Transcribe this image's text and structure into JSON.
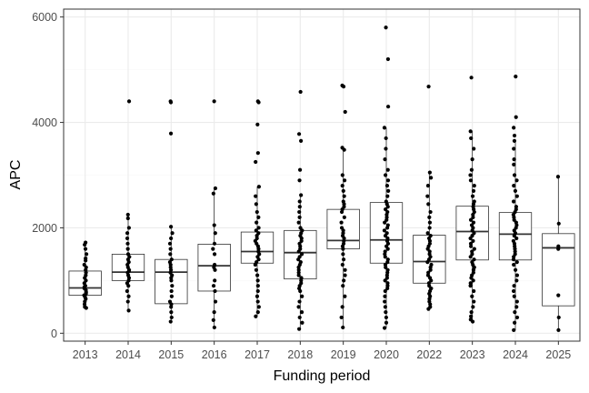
{
  "chart_data": {
    "type": "box",
    "title": "",
    "xlabel": "Funding period",
    "ylabel": "APC",
    "ylim": [
      -150,
      6150
    ],
    "yticks": [
      0,
      2000,
      4000,
      6000
    ],
    "grid": true,
    "legend": "none",
    "colors": {
      "panel_border": "#333333",
      "grid_major": "#ebebeb",
      "grid_minor": "#f5f5f5",
      "box": "#333333",
      "point": "#000000"
    },
    "categories": [
      "2013",
      "2014",
      "2015",
      "2016",
      "2017",
      "2018",
      "2019",
      "2020",
      "2022",
      "2023",
      "2024",
      "2025"
    ],
    "boxes": [
      {
        "category": "2013",
        "min": 480,
        "q1": 720,
        "median": 860,
        "q3": 1180,
        "max": 1720,
        "points": [
          1720,
          1680,
          1600,
          1500,
          1420,
          1380,
          1300,
          1250,
          1200,
          1150,
          1100,
          1050,
          1000,
          950,
          900,
          880,
          850,
          820,
          780,
          750,
          720,
          690,
          650,
          600,
          550,
          500,
          480
        ]
      },
      {
        "category": "2014",
        "min": 430,
        "q1": 1000,
        "median": 1160,
        "q3": 1500,
        "max": 2250,
        "points": [
          4400,
          2250,
          2180,
          2000,
          1900,
          1800,
          1700,
          1600,
          1500,
          1450,
          1400,
          1350,
          1300,
          1250,
          1200,
          1180,
          1150,
          1100,
          1050,
          1000,
          950,
          900,
          800,
          700,
          600,
          430
        ]
      },
      {
        "category": "2015",
        "min": 220,
        "q1": 560,
        "median": 1160,
        "q3": 1400,
        "max": 2020,
        "points": [
          4400,
          4380,
          3790,
          2020,
          1900,
          1800,
          1700,
          1600,
          1500,
          1400,
          1350,
          1300,
          1250,
          1200,
          1150,
          1100,
          1050,
          1000,
          900,
          800,
          700,
          600,
          550,
          500,
          400,
          300,
          220
        ]
      },
      {
        "category": "2016",
        "min": 110,
        "q1": 800,
        "median": 1280,
        "q3": 1690,
        "max": 2750,
        "points": [
          4400,
          2750,
          2650,
          2050,
          1900,
          1700,
          1600,
          1500,
          1300,
          1250,
          1200,
          1000,
          900,
          800,
          600,
          400,
          250,
          110
        ]
      },
      {
        "category": "2017",
        "min": 320,
        "q1": 1330,
        "median": 1550,
        "q3": 1920,
        "max": 2780,
        "points": [
          4400,
          4380,
          3960,
          3420,
          3250,
          2780,
          2600,
          2450,
          2300,
          2200,
          2100,
          2000,
          1950,
          1900,
          1850,
          1800,
          1750,
          1700,
          1650,
          1600,
          1550,
          1500,
          1450,
          1400,
          1350,
          1300,
          1200,
          1100,
          1000,
          900,
          800,
          700,
          600,
          500,
          400,
          320
        ]
      },
      {
        "category": "2018",
        "min": 80,
        "q1": 1030,
        "median": 1530,
        "q3": 1950,
        "max": 2620,
        "points": [
          4580,
          3780,
          3650,
          3100,
          2900,
          2620,
          2500,
          2400,
          2300,
          2200,
          2100,
          2000,
          1950,
          1900,
          1850,
          1800,
          1750,
          1700,
          1650,
          1600,
          1550,
          1500,
          1450,
          1400,
          1350,
          1300,
          1250,
          1200,
          1150,
          1100,
          1050,
          1000,
          950,
          900,
          850,
          800,
          700,
          600,
          500,
          400,
          300,
          200,
          80
        ]
      },
      {
        "category": "2019",
        "min": 110,
        "q1": 1600,
        "median": 1760,
        "q3": 2350,
        "max": 3500,
        "points": [
          4700,
          4680,
          4200,
          3520,
          3480,
          3000,
          2900,
          2800,
          2700,
          2600,
          2500,
          2450,
          2400,
          2350,
          2300,
          2200,
          2100,
          2000,
          1950,
          1900,
          1850,
          1800,
          1750,
          1700,
          1650,
          1600,
          1500,
          1400,
          1300,
          1200,
          1100,
          1000,
          900,
          700,
          500,
          300,
          110
        ]
      },
      {
        "category": "2020",
        "min": 100,
        "q1": 1330,
        "median": 1770,
        "q3": 2480,
        "max": 3900,
        "points": [
          5800,
          5200,
          4300,
          3900,
          3700,
          3500,
          3300,
          3100,
          3000,
          2900,
          2800,
          2700,
          2600,
          2500,
          2450,
          2400,
          2350,
          2300,
          2250,
          2200,
          2150,
          2100,
          2050,
          2000,
          1950,
          1900,
          1850,
          1800,
          1750,
          1700,
          1650,
          1600,
          1550,
          1500,
          1450,
          1400,
          1350,
          1300,
          1250,
          1200,
          1150,
          1100,
          1050,
          1000,
          950,
          900,
          850,
          800,
          700,
          600,
          500,
          400,
          300,
          200,
          100
        ]
      },
      {
        "category": "2022",
        "min": 460,
        "q1": 950,
        "median": 1360,
        "q3": 1860,
        "max": 3050,
        "points": [
          4680,
          3050,
          2950,
          2800,
          2600,
          2450,
          2300,
          2200,
          2100,
          2000,
          1900,
          1850,
          1800,
          1750,
          1700,
          1650,
          1600,
          1550,
          1500,
          1450,
          1400,
          1350,
          1300,
          1250,
          1200,
          1150,
          1100,
          1050,
          1000,
          950,
          900,
          850,
          800,
          750,
          700,
          650,
          600,
          550,
          500,
          460
        ]
      },
      {
        "category": "2023",
        "min": 220,
        "q1": 1390,
        "median": 1930,
        "q3": 2410,
        "max": 3830,
        "points": [
          4850,
          3830,
          3700,
          3500,
          3300,
          3100,
          3000,
          2900,
          2800,
          2700,
          2600,
          2500,
          2450,
          2400,
          2350,
          2300,
          2250,
          2200,
          2150,
          2100,
          2050,
          2000,
          1950,
          1900,
          1850,
          1800,
          1750,
          1700,
          1650,
          1600,
          1550,
          1500,
          1450,
          1400,
          1350,
          1300,
          1250,
          1200,
          1150,
          1100,
          1050,
          1000,
          950,
          900,
          800,
          700,
          600,
          500,
          400,
          320,
          260,
          220
        ]
      },
      {
        "category": "2024",
        "min": 60,
        "q1": 1390,
        "median": 1880,
        "q3": 2290,
        "max": 3650,
        "points": [
          4870,
          4100,
          3900,
          3750,
          3650,
          3500,
          3300,
          3200,
          3000,
          2900,
          2800,
          2700,
          2600,
          2500,
          2400,
          2350,
          2300,
          2250,
          2200,
          2150,
          2100,
          2050,
          2000,
          1950,
          1900,
          1850,
          1800,
          1750,
          1700,
          1650,
          1600,
          1550,
          1500,
          1450,
          1400,
          1350,
          1300,
          1200,
          1100,
          1000,
          900,
          800,
          700,
          600,
          500,
          400,
          300,
          200,
          60
        ]
      },
      {
        "category": "2025",
        "min": 60,
        "q1": 520,
        "median": 1620,
        "q3": 1890,
        "max": 2970,
        "points": [
          2970,
          2080,
          1650,
          1600,
          720,
          300,
          60
        ]
      }
    ]
  }
}
